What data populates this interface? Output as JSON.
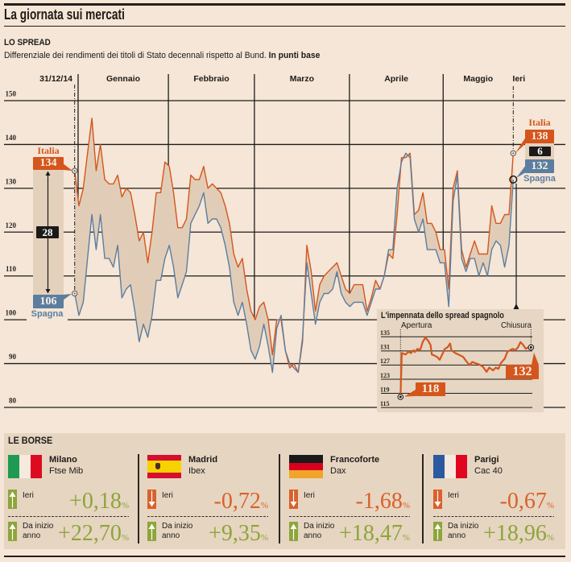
{
  "header": {
    "title": "La giornata sui mercati"
  },
  "spread": {
    "section_title": "LO SPREAD",
    "subtitle": "Differenziale dei rendimenti dei titoli di Stato decennali rispetto al Bund.",
    "subtitle_unit": "In punti base"
  },
  "chart_data": [
    {
      "type": "line",
      "title": "LO SPREAD",
      "subtitle": "Differenziale dei rendimenti dei titoli di Stato decennali rispetto al Bund. In punti base",
      "xlabel": "",
      "ylabel": "punti base",
      "x_unit": "trading days from 31/12/14",
      "x_range": [
        0,
        102
      ],
      "x_labels": {
        "start": "31/12/14",
        "months": [
          "Gennaio",
          "Febbraio",
          "Marzo",
          "Aprile",
          "Maggio"
        ],
        "end": "Ieri"
      },
      "month_boundaries": [
        0.8,
        21.8,
        41.8,
        63.9,
        85.7
      ],
      "ylim": [
        80,
        150
      ],
      "yticks": [
        150,
        140,
        130,
        120,
        110,
        100,
        90,
        80
      ],
      "grid": true,
      "fill_between_color": "#e1cdb7",
      "series": [
        {
          "name": "Italia",
          "color": "#d4561c",
          "values": [
            134,
            126,
            130,
            138,
            146,
            134,
            140,
            132,
            131,
            131,
            133,
            128,
            130,
            129,
            124,
            118,
            120,
            113,
            120,
            129,
            129,
            136,
            135,
            129,
            121,
            121,
            123,
            133,
            132,
            132,
            135,
            130,
            131,
            130,
            129,
            126,
            122,
            115,
            112,
            114,
            107,
            102,
            100,
            103,
            104,
            100,
            92,
            100,
            100,
            93,
            89,
            90,
            88,
            95,
            117,
            111,
            102,
            108,
            110,
            111,
            112,
            113,
            110,
            107,
            106,
            108,
            108,
            108,
            102,
            105,
            109,
            107,
            110,
            115,
            114,
            124,
            137,
            137,
            138,
            124,
            125,
            129,
            122,
            122,
            120,
            116,
            116,
            107,
            130,
            134,
            116,
            112,
            115,
            118,
            115,
            115,
            115,
            126,
            122,
            122,
            124,
            124,
            138
          ]
        },
        {
          "name": "Spagna",
          "color": "#5b7ea0",
          "values": [
            106,
            101,
            104,
            114,
            124,
            116,
            124,
            114,
            114,
            112,
            117,
            105,
            107,
            108,
            102,
            95,
            99,
            96,
            101,
            109,
            109,
            114,
            117,
            112,
            105,
            108,
            111,
            122,
            124,
            126,
            129,
            122,
            123,
            123,
            121,
            117,
            112,
            104,
            101,
            104,
            99,
            93,
            91,
            94,
            99,
            94,
            88,
            98,
            101,
            93,
            90,
            89,
            88,
            96,
            113,
            106,
            99,
            104,
            106,
            106,
            107,
            111,
            106,
            104,
            103,
            104,
            104,
            104,
            101,
            104,
            107,
            107,
            110,
            116,
            116,
            130,
            136,
            138,
            137,
            123,
            120,
            123,
            116,
            116,
            116,
            113,
            113,
            103,
            127,
            133,
            114,
            111,
            114,
            114,
            110,
            113,
            110,
            116,
            118,
            117,
            112,
            117,
            132
          ]
        }
      ],
      "annotations": {
        "start": {
          "italia": 134,
          "spagna": 106,
          "gap": 28
        },
        "end": {
          "italia": 138,
          "spagna": 132,
          "gap": 6
        }
      }
    },
    {
      "type": "line",
      "title": "L'impennata dello spread spagnolo",
      "x_unit": "% of yesterday's trading session",
      "x_range": [
        0,
        100
      ],
      "x_labels": {
        "start": "Apertura",
        "end": "Chiusura"
      },
      "ylim": [
        115,
        135
      ],
      "yticks": [
        135,
        131,
        127,
        123,
        119,
        115
      ],
      "grid": true,
      "series": [
        {
          "name": "Spagna",
          "color": "#d4561c",
          "points": [
            [
              0,
              118
            ],
            [
              1,
              130.4
            ],
            [
              4,
              130
            ],
            [
              6,
              130.8
            ],
            [
              8,
              130.4
            ],
            [
              10,
              131.2
            ],
            [
              11,
              130.7
            ],
            [
              13,
              131.6
            ],
            [
              15,
              131.2
            ],
            [
              17,
              133.5
            ],
            [
              19,
              134.8
            ],
            [
              21,
              134
            ],
            [
              23,
              132.7
            ],
            [
              24,
              130
            ],
            [
              26,
              129.7
            ],
            [
              28,
              129.3
            ],
            [
              30,
              128.5
            ],
            [
              32,
              130
            ],
            [
              34,
              131.6
            ],
            [
              36,
              132
            ],
            [
              38,
              133.1
            ],
            [
              39,
              131.2
            ],
            [
              42,
              130.4
            ],
            [
              45,
              129.9
            ],
            [
              48,
              129.3
            ],
            [
              51,
              127.8
            ],
            [
              53,
              127
            ],
            [
              55,
              127.9
            ],
            [
              57,
              127.6
            ],
            [
              60,
              127.2
            ],
            [
              63,
              126.6
            ],
            [
              66,
              125.1
            ],
            [
              68,
              126.3
            ],
            [
              71,
              125.5
            ],
            [
              73,
              126.3
            ],
            [
              75,
              125.9
            ],
            [
              77,
              127.6
            ],
            [
              80,
              128.9
            ],
            [
              82,
              130.8
            ],
            [
              84,
              131.2
            ],
            [
              86,
              131.6
            ],
            [
              88,
              131.2
            ],
            [
              90,
              132
            ],
            [
              92,
              133.5
            ],
            [
              94,
              132.7
            ],
            [
              96,
              131.6
            ],
            [
              98,
              132
            ],
            [
              100,
              132
            ]
          ]
        }
      ],
      "annotations": {
        "open": 118,
        "close": 132
      }
    }
  ],
  "borse": {
    "section_title": "LE BORSE",
    "ieri_label": "Ieri",
    "ytd_label": [
      "Da inizio",
      "anno"
    ],
    "percent_sign": "%",
    "colors": {
      "up": "#8da53a",
      "down": "#d9612b"
    },
    "markets": [
      {
        "city": "Milano",
        "index": "Ftse Mib",
        "flag_icon": "italy-flag-icon",
        "ieri": {
          "value": "+0,18",
          "direction": "up"
        },
        "ytd": {
          "value": "+22,70",
          "direction": "up"
        }
      },
      {
        "city": "Madrid",
        "index": "Ibex",
        "flag_icon": "spain-flag-icon",
        "ieri": {
          "value": "-0,72",
          "direction": "down"
        },
        "ytd": {
          "value": "+9,35",
          "direction": "up"
        }
      },
      {
        "city": "Francoforte",
        "index": "Dax",
        "flag_icon": "germany-flag-icon",
        "ieri": {
          "value": "-1,68",
          "direction": "down"
        },
        "ytd": {
          "value": "+18,47",
          "direction": "up"
        }
      },
      {
        "city": "Parigi",
        "index": "Cac 40",
        "flag_icon": "france-flag-icon",
        "ieri": {
          "value": "-0,67",
          "direction": "down"
        },
        "ytd": {
          "value": "+18,96",
          "direction": "up"
        }
      }
    ]
  }
}
